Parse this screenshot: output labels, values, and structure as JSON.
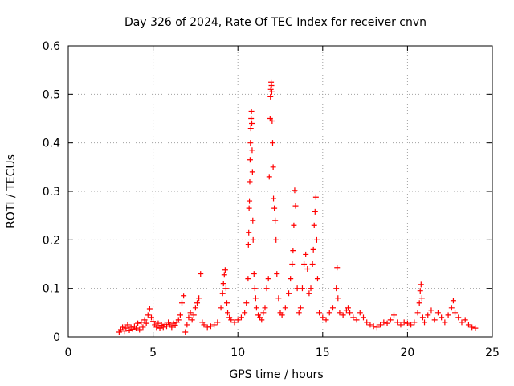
{
  "chart_data": {
    "type": "scatter",
    "title": "Day 326 of 2024, Rate Of TEC Index for receiver cnvn",
    "xlabel": "GPS time / hours",
    "ylabel": "ROTI / TECUs",
    "xlim": [
      0,
      25
    ],
    "ylim": [
      0,
      0.6
    ],
    "xticks": [
      "0",
      "5",
      "10",
      "15",
      "20",
      "25"
    ],
    "yticks": [
      "0",
      "0.1",
      "0.2",
      "0.3",
      "0.4",
      "0.5",
      "0.6"
    ],
    "grid": true,
    "marker": "+",
    "color": "#ff0000",
    "series": [
      {
        "name": "",
        "points": [
          [
            3.0,
            0.01
          ],
          [
            3.1,
            0.015
          ],
          [
            3.2,
            0.02
          ],
          [
            3.3,
            0.012
          ],
          [
            3.4,
            0.018
          ],
          [
            3.5,
            0.025
          ],
          [
            3.6,
            0.014
          ],
          [
            3.7,
            0.02
          ],
          [
            3.8,
            0.016
          ],
          [
            3.9,
            0.022
          ],
          [
            4.0,
            0.018
          ],
          [
            4.1,
            0.028
          ],
          [
            4.2,
            0.015
          ],
          [
            4.3,
            0.03
          ],
          [
            4.4,
            0.02
          ],
          [
            4.5,
            0.035
          ],
          [
            4.6,
            0.028
          ],
          [
            4.7,
            0.045
          ],
          [
            4.8,
            0.058
          ],
          [
            4.9,
            0.04
          ],
          [
            5.0,
            0.032
          ],
          [
            5.1,
            0.025
          ],
          [
            5.2,
            0.02
          ],
          [
            5.3,
            0.028
          ],
          [
            5.4,
            0.018
          ],
          [
            5.5,
            0.024
          ],
          [
            5.6,
            0.02
          ],
          [
            5.7,
            0.026
          ],
          [
            5.8,
            0.022
          ],
          [
            5.9,
            0.03
          ],
          [
            6.0,
            0.025
          ],
          [
            6.1,
            0.02
          ],
          [
            6.2,
            0.028
          ],
          [
            6.3,
            0.024
          ],
          [
            6.4,
            0.03
          ],
          [
            6.5,
            0.035
          ],
          [
            6.6,
            0.045
          ],
          [
            6.7,
            0.07
          ],
          [
            6.8,
            0.085
          ],
          [
            6.9,
            0.01
          ],
          [
            7.0,
            0.025
          ],
          [
            7.1,
            0.04
          ],
          [
            7.2,
            0.05
          ],
          [
            7.3,
            0.035
          ],
          [
            7.4,
            0.045
          ],
          [
            7.5,
            0.06
          ],
          [
            7.6,
            0.07
          ],
          [
            7.7,
            0.08
          ],
          [
            7.8,
            0.13
          ],
          [
            7.9,
            0.03
          ],
          [
            8.0,
            0.025
          ],
          [
            8.2,
            0.02
          ],
          [
            8.4,
            0.022
          ],
          [
            8.6,
            0.025
          ],
          [
            8.8,
            0.03
          ],
          [
            9.0,
            0.06
          ],
          [
            9.1,
            0.09
          ],
          [
            9.15,
            0.11
          ],
          [
            9.2,
            0.128
          ],
          [
            9.25,
            0.138
          ],
          [
            9.3,
            0.1
          ],
          [
            9.35,
            0.07
          ],
          [
            9.4,
            0.05
          ],
          [
            9.5,
            0.04
          ],
          [
            9.6,
            0.035
          ],
          [
            9.8,
            0.03
          ],
          [
            10.0,
            0.035
          ],
          [
            10.2,
            0.04
          ],
          [
            10.4,
            0.05
          ],
          [
            10.5,
            0.07
          ],
          [
            10.6,
            0.12
          ],
          [
            10.62,
            0.19
          ],
          [
            10.64,
            0.215
          ],
          [
            10.66,
            0.265
          ],
          [
            10.68,
            0.28
          ],
          [
            10.7,
            0.32
          ],
          [
            10.72,
            0.365
          ],
          [
            10.74,
            0.4
          ],
          [
            10.76,
            0.43
          ],
          [
            10.78,
            0.45
          ],
          [
            10.8,
            0.465
          ],
          [
            10.82,
            0.44
          ],
          [
            10.84,
            0.385
          ],
          [
            10.86,
            0.34
          ],
          [
            10.88,
            0.24
          ],
          [
            10.9,
            0.2
          ],
          [
            10.95,
            0.13
          ],
          [
            11.0,
            0.1
          ],
          [
            11.05,
            0.08
          ],
          [
            11.1,
            0.06
          ],
          [
            11.2,
            0.045
          ],
          [
            11.3,
            0.04
          ],
          [
            11.4,
            0.035
          ],
          [
            11.5,
            0.05
          ],
          [
            11.6,
            0.06
          ],
          [
            11.7,
            0.1
          ],
          [
            11.8,
            0.12
          ],
          [
            11.85,
            0.33
          ],
          [
            11.9,
            0.45
          ],
          [
            11.92,
            0.495
          ],
          [
            11.94,
            0.51
          ],
          [
            11.96,
            0.525
          ],
          [
            11.98,
            0.518
          ],
          [
            12.0,
            0.505
          ],
          [
            12.02,
            0.445
          ],
          [
            12.05,
            0.4
          ],
          [
            12.08,
            0.35
          ],
          [
            12.1,
            0.285
          ],
          [
            12.15,
            0.265
          ],
          [
            12.2,
            0.24
          ],
          [
            12.25,
            0.2
          ],
          [
            12.3,
            0.13
          ],
          [
            12.4,
            0.08
          ],
          [
            12.5,
            0.05
          ],
          [
            12.6,
            0.045
          ],
          [
            12.8,
            0.06
          ],
          [
            13.0,
            0.09
          ],
          [
            13.1,
            0.12
          ],
          [
            13.2,
            0.15
          ],
          [
            13.25,
            0.178
          ],
          [
            13.3,
            0.23
          ],
          [
            13.35,
            0.302
          ],
          [
            13.4,
            0.27
          ],
          [
            13.5,
            0.1
          ],
          [
            13.6,
            0.05
          ],
          [
            13.7,
            0.06
          ],
          [
            13.8,
            0.1
          ],
          [
            13.9,
            0.15
          ],
          [
            14.0,
            0.17
          ],
          [
            14.1,
            0.14
          ],
          [
            14.2,
            0.09
          ],
          [
            14.3,
            0.1
          ],
          [
            14.4,
            0.15
          ],
          [
            14.45,
            0.18
          ],
          [
            14.5,
            0.23
          ],
          [
            14.55,
            0.258
          ],
          [
            14.6,
            0.288
          ],
          [
            14.65,
            0.2
          ],
          [
            14.7,
            0.12
          ],
          [
            14.8,
            0.05
          ],
          [
            15.0,
            0.04
          ],
          [
            15.2,
            0.035
          ],
          [
            15.4,
            0.05
          ],
          [
            15.6,
            0.06
          ],
          [
            15.8,
            0.1
          ],
          [
            15.85,
            0.143
          ],
          [
            15.9,
            0.08
          ],
          [
            16.0,
            0.05
          ],
          [
            16.2,
            0.045
          ],
          [
            16.4,
            0.055
          ],
          [
            16.5,
            0.06
          ],
          [
            16.6,
            0.05
          ],
          [
            16.8,
            0.04
          ],
          [
            17.0,
            0.035
          ],
          [
            17.2,
            0.05
          ],
          [
            17.4,
            0.04
          ],
          [
            17.6,
            0.03
          ],
          [
            17.8,
            0.025
          ],
          [
            18.0,
            0.022
          ],
          [
            18.2,
            0.02
          ],
          [
            18.4,
            0.025
          ],
          [
            18.6,
            0.03
          ],
          [
            18.8,
            0.028
          ],
          [
            19.0,
            0.035
          ],
          [
            19.2,
            0.045
          ],
          [
            19.4,
            0.03
          ],
          [
            19.6,
            0.025
          ],
          [
            19.8,
            0.03
          ],
          [
            20.0,
            0.028
          ],
          [
            20.2,
            0.025
          ],
          [
            20.4,
            0.03
          ],
          [
            20.6,
            0.05
          ],
          [
            20.7,
            0.07
          ],
          [
            20.75,
            0.095
          ],
          [
            20.8,
            0.108
          ],
          [
            20.85,
            0.08
          ],
          [
            20.9,
            0.04
          ],
          [
            21.0,
            0.03
          ],
          [
            21.2,
            0.045
          ],
          [
            21.4,
            0.055
          ],
          [
            21.6,
            0.035
          ],
          [
            21.8,
            0.05
          ],
          [
            22.0,
            0.04
          ],
          [
            22.2,
            0.03
          ],
          [
            22.4,
            0.045
          ],
          [
            22.6,
            0.06
          ],
          [
            22.7,
            0.075
          ],
          [
            22.8,
            0.05
          ],
          [
            23.0,
            0.04
          ],
          [
            23.2,
            0.03
          ],
          [
            23.4,
            0.035
          ],
          [
            23.6,
            0.025
          ],
          [
            23.8,
            0.02
          ],
          [
            24.0,
            0.018
          ]
        ]
      }
    ]
  }
}
